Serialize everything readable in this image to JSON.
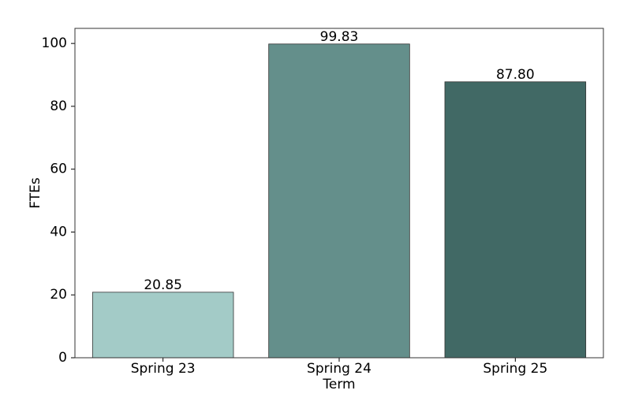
{
  "chart_data": {
    "type": "bar",
    "x_label": "Term",
    "y_label": "FTEs",
    "categories": [
      "Spring 23",
      "Spring 24",
      "Spring 25"
    ],
    "values": [
      20.85,
      99.83,
      87.8
    ],
    "value_labels": [
      "20.85",
      "99.83",
      "87.80"
    ],
    "colors": [
      "#a3cbc7",
      "#648f8b",
      "#416965"
    ],
    "ylim": [
      0,
      104.8
    ],
    "yticks": [
      0,
      20,
      40,
      60,
      80,
      100
    ],
    "grid": false
  }
}
